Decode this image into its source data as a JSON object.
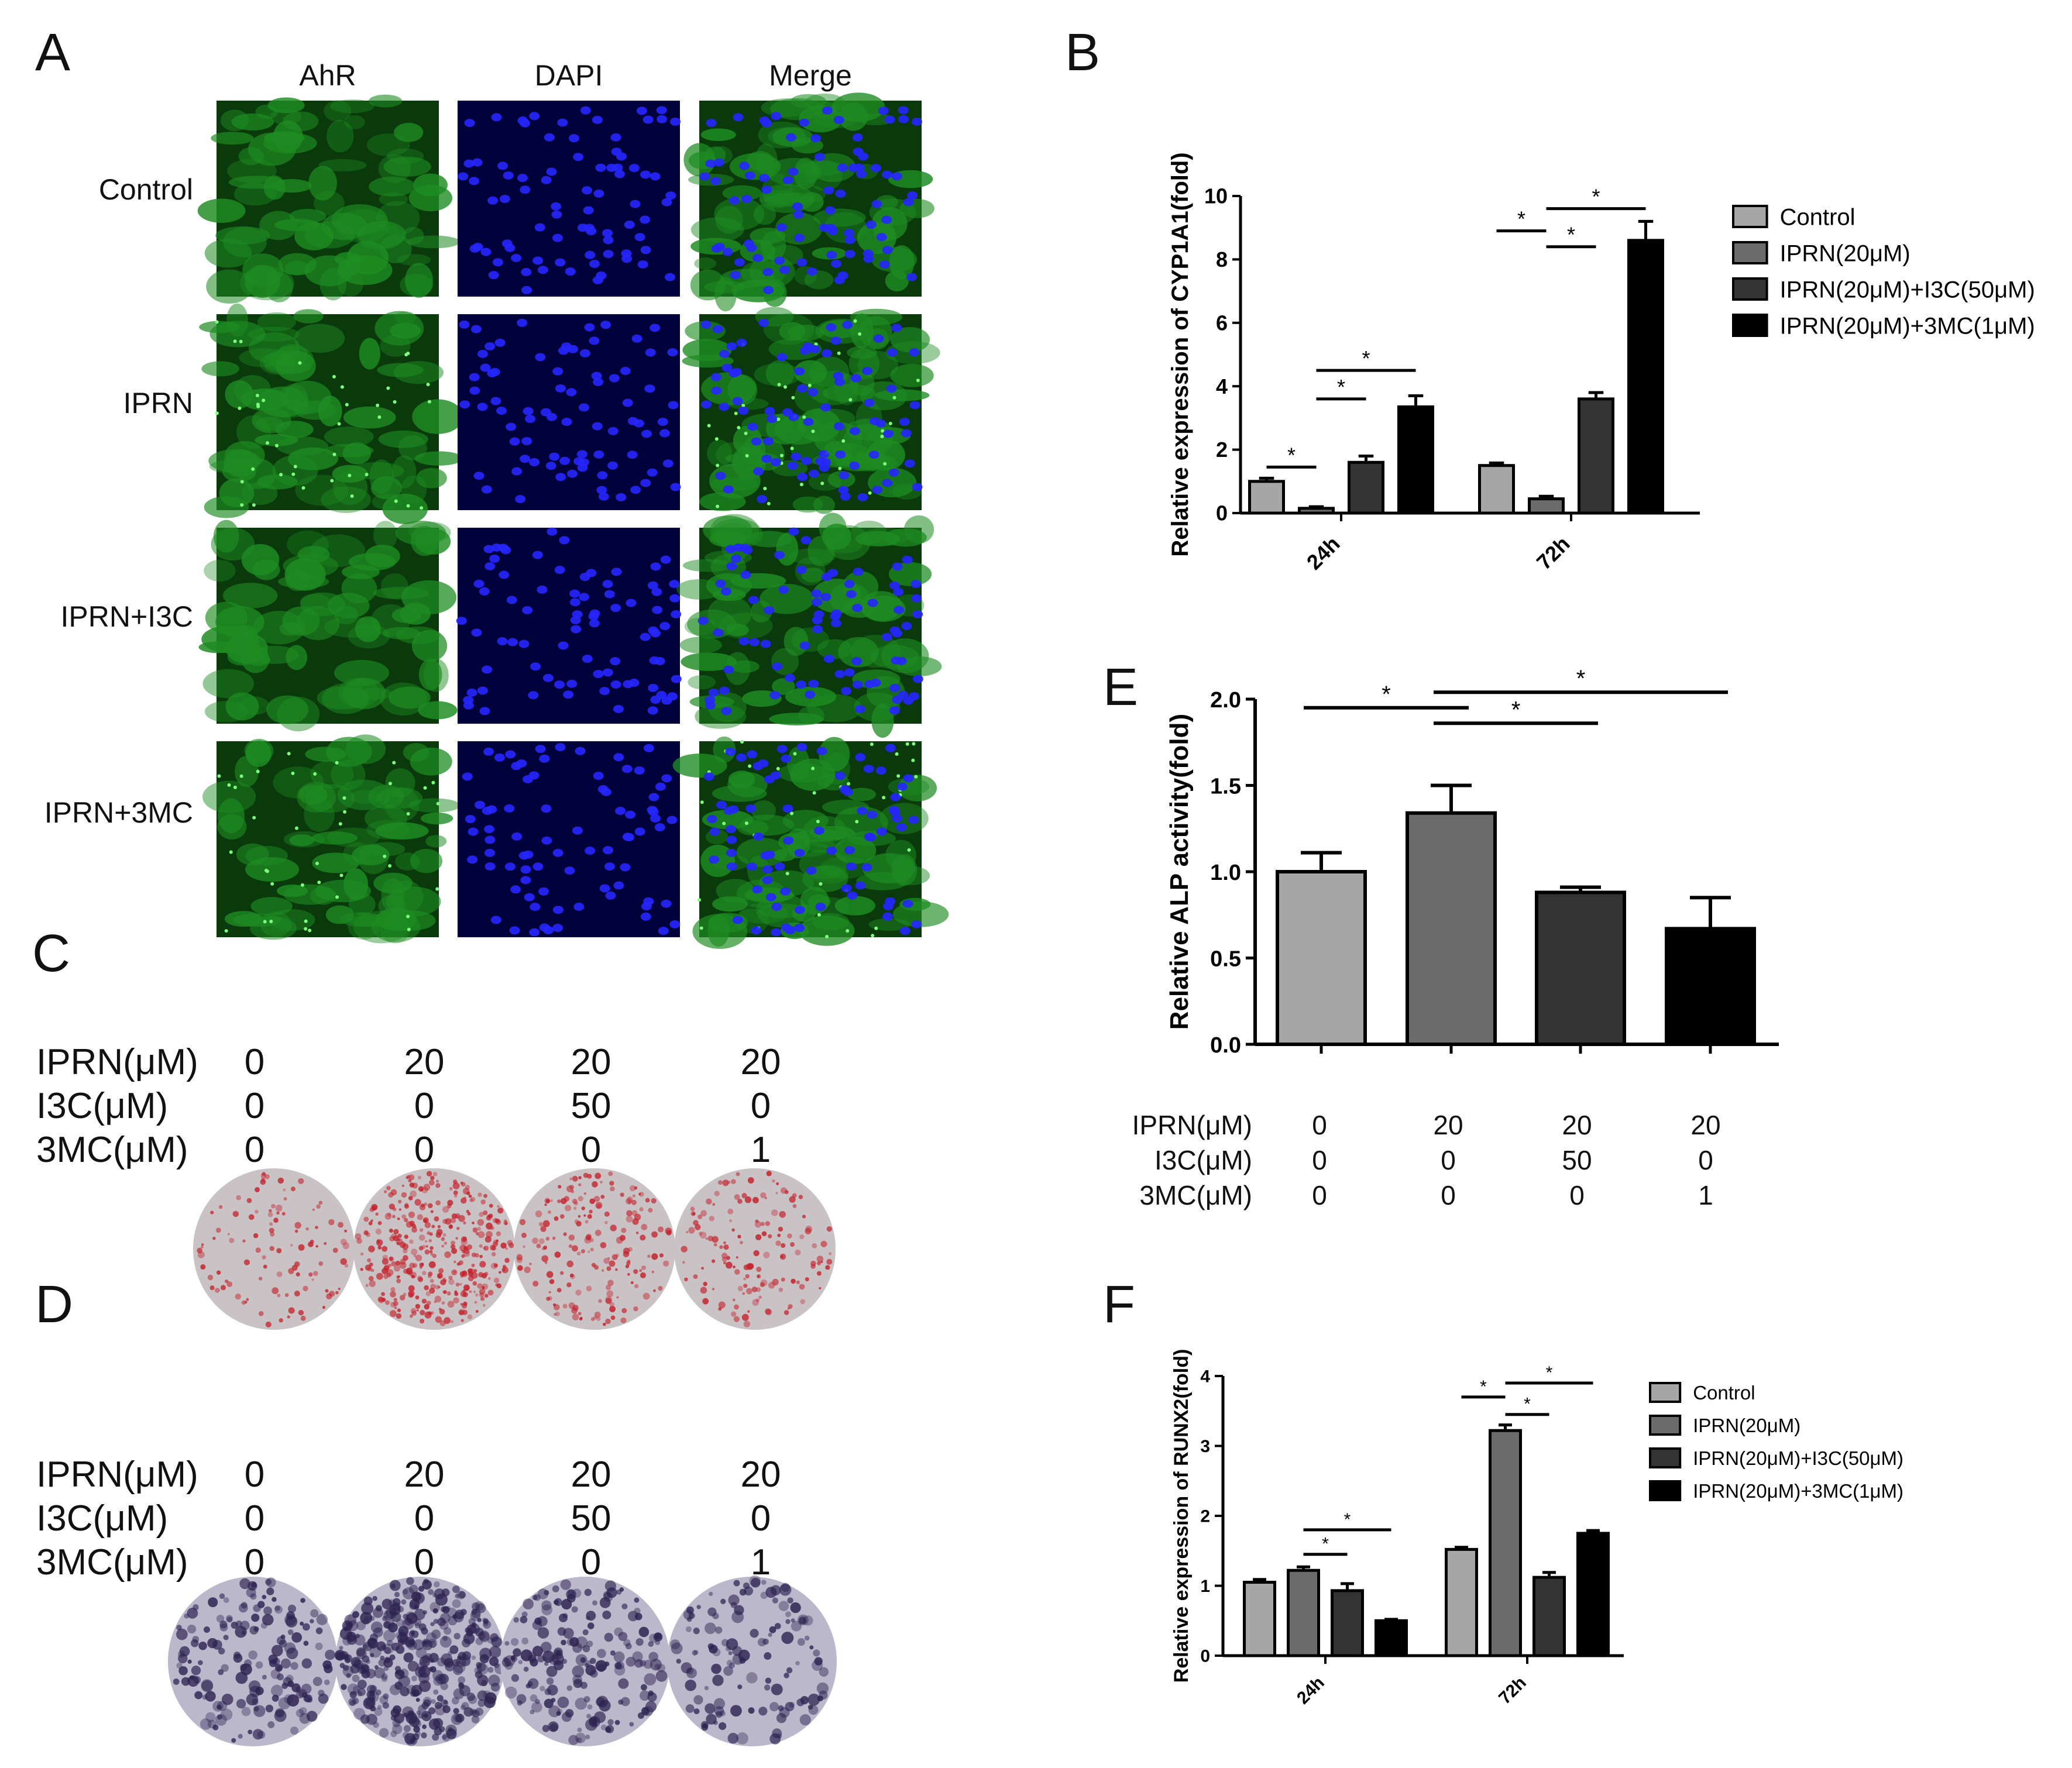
{
  "panelA": {
    "letter": "A",
    "columns": [
      "AhR",
      "DAPI",
      "Merge"
    ],
    "rows": [
      "Control",
      "IPRN",
      "IPRN+I3C",
      "IPRN+3MC"
    ],
    "colors": {
      "ahr": "#1e8c22",
      "dapi_bg": "#00003a",
      "nuclei": "#2626ff"
    }
  },
  "panelB": {
    "letter": "B"
  },
  "panelC": {
    "letter": "C",
    "rows": [
      {
        "label": "IPRN(μM)",
        "values": [
          "0",
          "20",
          "20",
          "20"
        ]
      },
      {
        "label": "I3C(μM)",
        "values": [
          "0",
          "0",
          "50",
          "0"
        ]
      },
      {
        "label": "3MC(μM)",
        "values": [
          "0",
          "0",
          "0",
          "1"
        ]
      }
    ],
    "dish_colors": {
      "base": "#c9c3c5",
      "stain": "#c4202a"
    },
    "stain_levels": [
      0.25,
      0.9,
      0.45,
      0.35
    ]
  },
  "panelD": {
    "letter": "D",
    "rows": [
      {
        "label": "IPRN(μM)",
        "values": [
          "0",
          "20",
          "20",
          "20"
        ]
      },
      {
        "label": "I3C(μM)",
        "values": [
          "0",
          "0",
          "50",
          "0"
        ]
      },
      {
        "label": "3MC(μM)",
        "values": [
          "0",
          "0",
          "0",
          "1"
        ]
      }
    ],
    "dish_colors": {
      "base": "#bcb8cc",
      "stain": "#2c2350"
    },
    "stain_levels": [
      0.4,
      0.9,
      0.45,
      0.3
    ]
  },
  "panelE": {
    "letter": "E",
    "rows": [
      {
        "label": "IPRN(μM)",
        "values": [
          "0",
          "20",
          "20",
          "20"
        ]
      },
      {
        "label": "I3C(μM)",
        "values": [
          "0",
          "0",
          "50",
          "0"
        ]
      },
      {
        "label": "3MC(μM)",
        "values": [
          "0",
          "0",
          "0",
          "1"
        ]
      }
    ]
  },
  "panelF": {
    "letter": "F"
  },
  "chart_data": [
    {
      "id": "B",
      "type": "bar",
      "ylabel": "Relative expression of CYP1A1(fold)",
      "categories": [
        "24h",
        "72h"
      ],
      "ylim": [
        0,
        10
      ],
      "yticks": [
        "0",
        "2",
        "4",
        "6",
        "8",
        "10"
      ],
      "series": [
        {
          "name": "Control",
          "color": "#a6a6a6",
          "values": [
            1.0,
            1.5
          ],
          "errors": [
            0.1,
            0.08
          ]
        },
        {
          "name": "IPRN(20μM)",
          "color": "#6b6b6b",
          "values": [
            0.15,
            0.45
          ],
          "errors": [
            0.05,
            0.08
          ]
        },
        {
          "name": "IPRN(20μM)+I3C(50μM)",
          "color": "#333333",
          "values": [
            1.6,
            3.6
          ],
          "errors": [
            0.2,
            0.2
          ]
        },
        {
          "name": "IPRN(20μM)+3MC(1μM)",
          "color": "#000000",
          "values": [
            3.35,
            8.6
          ],
          "errors": [
            0.35,
            0.6
          ]
        }
      ],
      "significance": [
        {
          "cat": 0,
          "from": 0,
          "to": 1,
          "y": 1.45,
          "label": "*"
        },
        {
          "cat": 0,
          "from": 1,
          "to": 2,
          "y": 3.6,
          "label": "*"
        },
        {
          "cat": 0,
          "from": 1,
          "to": 3,
          "y": 4.5,
          "label": "*"
        },
        {
          "cat": 1,
          "from": 0,
          "to": 1,
          "y": 8.9,
          "label": "*"
        },
        {
          "cat": 1,
          "from": 1,
          "to": 2,
          "y": 8.4,
          "label": "*"
        },
        {
          "cat": 1,
          "from": 1,
          "to": 3,
          "y": 9.6,
          "label": "*"
        }
      ],
      "legend": "right"
    },
    {
      "id": "E",
      "type": "bar",
      "ylabel": "Relative ALP activity(fold)",
      "categories": [
        "",
        "",
        "",
        ""
      ],
      "ylim": [
        0,
        2.0
      ],
      "yticks": [
        "0.0",
        "0.5",
        "1.0",
        "1.5",
        "2.0"
      ],
      "colors": [
        "#a6a6a6",
        "#6b6b6b",
        "#333333",
        "#000000"
      ],
      "values": [
        1.0,
        1.34,
        0.88,
        0.67
      ],
      "errors": [
        0.11,
        0.16,
        0.03,
        0.18
      ],
      "significance": [
        {
          "from": 0,
          "to": 1,
          "y": 1.95,
          "label": "*"
        },
        {
          "from": 1,
          "to": 2,
          "y": 1.86,
          "label": "*"
        },
        {
          "from": 1,
          "to": 3,
          "y": 2.04,
          "label": "*"
        }
      ]
    },
    {
      "id": "F",
      "type": "bar",
      "ylabel": "Relative expression of RUNX2(fold)",
      "categories": [
        "24h",
        "72h"
      ],
      "ylim": [
        0,
        4
      ],
      "yticks": [
        "0",
        "1",
        "2",
        "3",
        "4"
      ],
      "series": [
        {
          "name": "Control",
          "color": "#a6a6a6",
          "values": [
            1.05,
            1.52
          ],
          "errors": [
            0.04,
            0.03
          ]
        },
        {
          "name": "IPRN(20μM)",
          "color": "#6b6b6b",
          "values": [
            1.22,
            3.22
          ],
          "errors": [
            0.05,
            0.08
          ]
        },
        {
          "name": "IPRN(20μM)+I3C(50μM)",
          "color": "#333333",
          "values": [
            0.93,
            1.12
          ],
          "errors": [
            0.1,
            0.07
          ]
        },
        {
          "name": "IPRN(20μM)+3MC(1μM)",
          "color": "#000000",
          "values": [
            0.5,
            1.75
          ],
          "errors": [
            0.02,
            0.04
          ]
        }
      ],
      "significance": [
        {
          "cat": 0,
          "from": 1,
          "to": 2,
          "y": 1.45,
          "label": "*"
        },
        {
          "cat": 0,
          "from": 1,
          "to": 3,
          "y": 1.8,
          "label": "*"
        },
        {
          "cat": 1,
          "from": 0,
          "to": 1,
          "y": 3.7,
          "label": "*"
        },
        {
          "cat": 1,
          "from": 1,
          "to": 2,
          "y": 3.45,
          "label": "*"
        },
        {
          "cat": 1,
          "from": 1,
          "to": 3,
          "y": 3.9,
          "label": "*"
        }
      ],
      "legend": "right"
    }
  ]
}
